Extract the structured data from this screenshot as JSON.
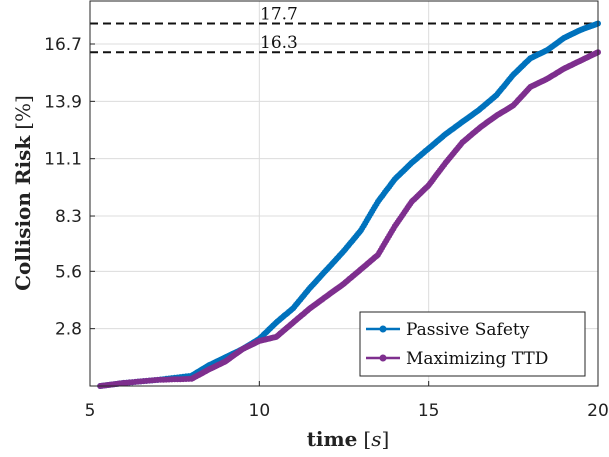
{
  "chart_data": {
    "type": "line",
    "xlabel": "time",
    "xlabel_unit": "s",
    "ylabel": "Collision Risk",
    "ylabel_unit": "%",
    "xlim": [
      5,
      20
    ],
    "ylim": [
      0,
      18.8
    ],
    "x_ticks": [
      "5",
      "10",
      "15",
      "20"
    ],
    "y_ticks": [
      "2.8",
      "5.6",
      "8.3",
      "11.1",
      "13.9",
      "16.7"
    ],
    "grid": true,
    "legend_position": "bottom-right",
    "reference_lines": [
      {
        "label": "17.7",
        "y": 17.7
      },
      {
        "label": "16.3",
        "y": 16.3
      }
    ],
    "series": [
      {
        "name": "Passive Safety",
        "color": "#0072BD",
        "x": [
          5.3,
          6.0,
          7.0,
          8.0,
          8.5,
          9.0,
          9.5,
          10.0,
          10.5,
          11.0,
          11.5,
          12.0,
          12.5,
          13.0,
          13.5,
          14.0,
          14.5,
          15.0,
          15.5,
          16.0,
          16.5,
          17.0,
          17.5,
          18.0,
          18.5,
          19.0,
          19.5,
          20.0
        ],
        "y": [
          0.0,
          0.15,
          0.3,
          0.5,
          1.0,
          1.4,
          1.8,
          2.3,
          3.1,
          3.8,
          4.8,
          5.7,
          6.6,
          7.6,
          9.0,
          10.1,
          10.9,
          11.6,
          12.3,
          12.9,
          13.5,
          14.2,
          15.2,
          16.0,
          16.4,
          17.0,
          17.4,
          17.7
        ]
      },
      {
        "name": "Maximizing TTD",
        "color": "#7E2F8E",
        "x": [
          5.3,
          6.0,
          7.0,
          8.0,
          8.5,
          9.0,
          9.5,
          10.0,
          10.5,
          11.0,
          11.5,
          12.0,
          12.5,
          13.0,
          13.5,
          14.0,
          14.5,
          15.0,
          15.5,
          16.0,
          16.5,
          17.0,
          17.5,
          18.0,
          18.5,
          19.0,
          19.5,
          20.0
        ],
        "y": [
          0.0,
          0.15,
          0.3,
          0.35,
          0.8,
          1.2,
          1.8,
          2.2,
          2.4,
          3.1,
          3.8,
          4.4,
          5.0,
          5.7,
          6.4,
          7.8,
          9.0,
          9.8,
          10.9,
          11.9,
          12.6,
          13.2,
          13.7,
          14.6,
          15.0,
          15.5,
          15.9,
          16.3
        ]
      }
    ]
  }
}
